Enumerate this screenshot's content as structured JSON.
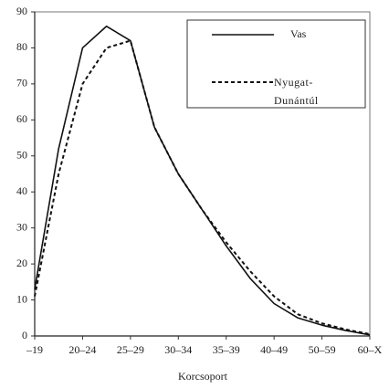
{
  "chart_data": {
    "type": "line",
    "xlabel": "Korcsoport",
    "categories": [
      "–19",
      null,
      "20–24",
      null,
      "25–29",
      null,
      "30–34",
      null,
      "35–39",
      null,
      "40–49",
      null,
      "50–59",
      null,
      "60–X"
    ],
    "series": [
      {
        "name": "Vas",
        "color": "#111111",
        "dash": "none",
        "values": [
          13,
          52,
          80,
          86,
          82,
          58,
          45,
          35,
          25,
          16,
          9,
          5,
          3,
          1.5,
          0.3
        ]
      },
      {
        "name": "Nyugat-Dunántúl",
        "color": "#111111",
        "dash": "4 3",
        "values": [
          11,
          45,
          70,
          80,
          82,
          58,
          45,
          35,
          26,
          18,
          11,
          6,
          3.5,
          1.8,
          0.5
        ]
      }
    ],
    "ylim": [
      0,
      90
    ],
    "yticks": [
      0,
      10,
      20,
      30,
      40,
      50,
      60,
      70,
      80,
      90
    ],
    "grid": false
  }
}
